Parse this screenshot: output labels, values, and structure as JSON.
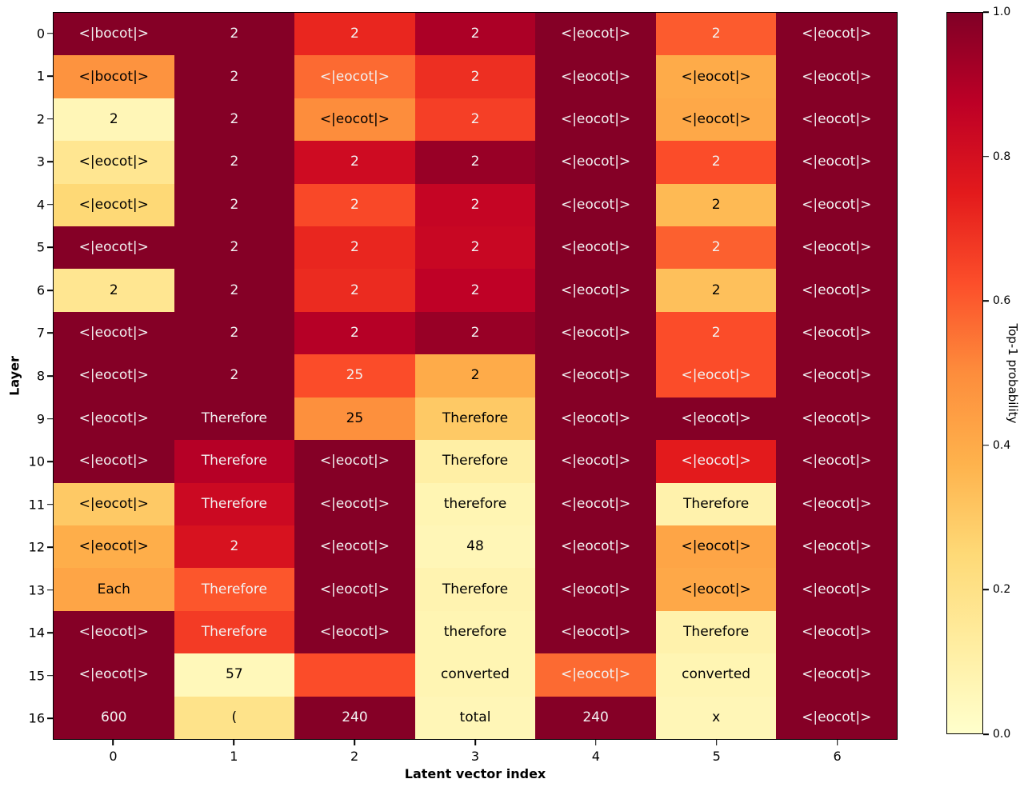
{
  "chart_data": {
    "type": "heatmap",
    "title": "",
    "xlabel": "Latent vector index",
    "ylabel": "Layer",
    "colorbar_label": "Top-1 probability",
    "colorbar_ticks": [
      "1.0",
      "0.8",
      "0.6",
      "0.4",
      "0.2",
      "0.0"
    ],
    "value_range": [
      0.0,
      1.0
    ],
    "x_ticks": [
      "0",
      "1",
      "2",
      "3",
      "4",
      "5",
      "6"
    ],
    "y_ticks": [
      "0",
      "1",
      "2",
      "3",
      "4",
      "5",
      "6",
      "7",
      "8",
      "9",
      "10",
      "11",
      "12",
      "13",
      "14",
      "15",
      "16"
    ],
    "colormap": "YlOrRd",
    "colormap_stops": [
      [
        0.0,
        "#ffffcc"
      ],
      [
        0.125,
        "#ffeda0"
      ],
      [
        0.25,
        "#fed976"
      ],
      [
        0.375,
        "#feb24c"
      ],
      [
        0.5,
        "#fd8d3c"
      ],
      [
        0.625,
        "#fc4e2a"
      ],
      [
        0.75,
        "#e31a1c"
      ],
      [
        0.875,
        "#bd0026"
      ],
      [
        1.0,
        "#800026"
      ]
    ],
    "rows": [
      {
        "layer": "0",
        "cells": [
          {
            "token": "<|bocot|>",
            "prob": 0.99
          },
          {
            "token": "2",
            "prob": 0.99
          },
          {
            "token": "2",
            "prob": 0.72
          },
          {
            "token": "2",
            "prob": 0.91
          },
          {
            "token": "<|eocot|>",
            "prob": 0.99
          },
          {
            "token": "2",
            "prob": 0.6
          },
          {
            "token": "<|eocot|>",
            "prob": 0.99
          }
        ]
      },
      {
        "layer": "1",
        "cells": [
          {
            "token": "<|bocot|>",
            "prob": 0.48
          },
          {
            "token": "2",
            "prob": 0.99
          },
          {
            "token": "<|eocot|>",
            "prob": 0.57
          },
          {
            "token": "2",
            "prob": 0.7
          },
          {
            "token": "<|eocot|>",
            "prob": 0.99
          },
          {
            "token": "<|eocot|>",
            "prob": 0.4
          },
          {
            "token": "<|eocot|>",
            "prob": 0.99
          }
        ]
      },
      {
        "layer": "2",
        "cells": [
          {
            "token": "2",
            "prob": 0.06
          },
          {
            "token": "2",
            "prob": 0.99
          },
          {
            "token": "<|eocot|>",
            "prob": 0.5
          },
          {
            "token": "2",
            "prob": 0.66
          },
          {
            "token": "<|eocot|>",
            "prob": 0.99
          },
          {
            "token": "<|eocot|>",
            "prob": 0.41
          },
          {
            "token": "<|eocot|>",
            "prob": 0.99
          }
        ]
      },
      {
        "layer": "3",
        "cells": [
          {
            "token": "<|eocot|>",
            "prob": 0.17
          },
          {
            "token": "2",
            "prob": 0.99
          },
          {
            "token": "2",
            "prob": 0.82
          },
          {
            "token": "2",
            "prob": 0.95
          },
          {
            "token": "<|eocot|>",
            "prob": 0.99
          },
          {
            "token": "2",
            "prob": 0.63
          },
          {
            "token": "<|eocot|>",
            "prob": 0.99
          }
        ]
      },
      {
        "layer": "4",
        "cells": [
          {
            "token": "<|eocot|>",
            "prob": 0.25
          },
          {
            "token": "2",
            "prob": 0.99
          },
          {
            "token": "2",
            "prob": 0.64
          },
          {
            "token": "2",
            "prob": 0.85
          },
          {
            "token": "<|eocot|>",
            "prob": 0.99
          },
          {
            "token": "2",
            "prob": 0.35
          },
          {
            "token": "<|eocot|>",
            "prob": 0.99
          }
        ]
      },
      {
        "layer": "5",
        "cells": [
          {
            "token": "<|eocot|>",
            "prob": 0.99
          },
          {
            "token": "2",
            "prob": 0.99
          },
          {
            "token": "2",
            "prob": 0.72
          },
          {
            "token": "2",
            "prob": 0.84
          },
          {
            "token": "<|eocot|>",
            "prob": 0.99
          },
          {
            "token": "2",
            "prob": 0.59
          },
          {
            "token": "<|eocot|>",
            "prob": 0.99
          }
        ]
      },
      {
        "layer": "6",
        "cells": [
          {
            "token": "2",
            "prob": 0.17
          },
          {
            "token": "2",
            "prob": 0.99
          },
          {
            "token": "2",
            "prob": 0.71
          },
          {
            "token": "2",
            "prob": 0.87
          },
          {
            "token": "<|eocot|>",
            "prob": 0.99
          },
          {
            "token": "2",
            "prob": 0.33
          },
          {
            "token": "<|eocot|>",
            "prob": 0.99
          }
        ]
      },
      {
        "layer": "7",
        "cells": [
          {
            "token": "<|eocot|>",
            "prob": 0.99
          },
          {
            "token": "2",
            "prob": 0.99
          },
          {
            "token": "2",
            "prob": 0.89
          },
          {
            "token": "2",
            "prob": 0.95
          },
          {
            "token": "<|eocot|>",
            "prob": 0.99
          },
          {
            "token": "2",
            "prob": 0.63
          },
          {
            "token": "<|eocot|>",
            "prob": 0.99
          }
        ]
      },
      {
        "layer": "8",
        "cells": [
          {
            "token": "<|eocot|>",
            "prob": 0.99
          },
          {
            "token": "2",
            "prob": 0.99
          },
          {
            "token": "25",
            "prob": 0.63
          },
          {
            "token": "2",
            "prob": 0.4
          },
          {
            "token": "<|eocot|>",
            "prob": 0.99
          },
          {
            "token": "<|eocot|>",
            "prob": 0.63
          },
          {
            "token": "<|eocot|>",
            "prob": 0.99
          }
        ]
      },
      {
        "layer": "9",
        "cells": [
          {
            "token": "<|eocot|>",
            "prob": 0.99
          },
          {
            "token": "Therefore",
            "prob": 0.99
          },
          {
            "token": "25",
            "prob": 0.49
          },
          {
            "token": "Therefore",
            "prob": 0.3
          },
          {
            "token": "<|eocot|>",
            "prob": 0.99
          },
          {
            "token": "<|eocot|>",
            "prob": 0.99
          },
          {
            "token": "<|eocot|>",
            "prob": 0.99
          }
        ]
      },
      {
        "layer": "10",
        "cells": [
          {
            "token": "<|eocot|>",
            "prob": 0.99
          },
          {
            "token": "Therefore",
            "prob": 0.89
          },
          {
            "token": "<|eocot|>",
            "prob": 0.99
          },
          {
            "token": "Therefore",
            "prob": 0.11
          },
          {
            "token": "<|eocot|>",
            "prob": 0.99
          },
          {
            "token": "<|eocot|>",
            "prob": 0.75
          },
          {
            "token": "<|eocot|>",
            "prob": 0.99
          }
        ]
      },
      {
        "layer": "11",
        "cells": [
          {
            "token": "<|eocot|>",
            "prob": 0.3
          },
          {
            "token": "Therefore",
            "prob": 0.83
          },
          {
            "token": "<|eocot|>",
            "prob": 0.99
          },
          {
            "token": "therefore",
            "prob": 0.07
          },
          {
            "token": "<|eocot|>",
            "prob": 0.99
          },
          {
            "token": "Therefore",
            "prob": 0.09
          },
          {
            "token": "<|eocot|>",
            "prob": 0.99
          }
        ]
      },
      {
        "layer": "12",
        "cells": [
          {
            "token": "<|eocot|>",
            "prob": 0.39
          },
          {
            "token": "2",
            "prob": 0.79
          },
          {
            "token": "<|eocot|>",
            "prob": 0.99
          },
          {
            "token": "48",
            "prob": 0.06
          },
          {
            "token": "<|eocot|>",
            "prob": 0.99
          },
          {
            "token": "<|eocot|>",
            "prob": 0.42
          },
          {
            "token": "<|eocot|>",
            "prob": 0.99
          }
        ]
      },
      {
        "layer": "13",
        "cells": [
          {
            "token": "Each",
            "prob": 0.42
          },
          {
            "token": "Therefore",
            "prob": 0.61
          },
          {
            "token": "<|eocot|>",
            "prob": 0.99
          },
          {
            "token": "Therefore",
            "prob": 0.08
          },
          {
            "token": "<|eocot|>",
            "prob": 0.99
          },
          {
            "token": "<|eocot|>",
            "prob": 0.41
          },
          {
            "token": "<|eocot|>",
            "prob": 0.99
          }
        ]
      },
      {
        "layer": "14",
        "cells": [
          {
            "token": "<|eocot|>",
            "prob": 0.99
          },
          {
            "token": "Therefore",
            "prob": 0.67
          },
          {
            "token": "<|eocot|>",
            "prob": 0.99
          },
          {
            "token": "therefore",
            "prob": 0.07
          },
          {
            "token": "<|eocot|>",
            "prob": 0.99
          },
          {
            "token": "Therefore",
            "prob": 0.09
          },
          {
            "token": "<|eocot|>",
            "prob": 0.99
          }
        ]
      },
      {
        "layer": "15",
        "cells": [
          {
            "token": "<|eocot|>",
            "prob": 0.99
          },
          {
            "token": "57",
            "prob": 0.05
          },
          {
            "token": "",
            "prob": 0.63
          },
          {
            "token": "converted",
            "prob": 0.07
          },
          {
            "token": "<|eocot|>",
            "prob": 0.57
          },
          {
            "token": "converted",
            "prob": 0.07
          },
          {
            "token": "<|eocot|>",
            "prob": 0.99
          }
        ]
      },
      {
        "layer": "16",
        "cells": [
          {
            "token": "600",
            "prob": 0.99
          },
          {
            "token": "(",
            "prob": 0.19
          },
          {
            "token": "240",
            "prob": 0.99
          },
          {
            "token": "total",
            "prob": 0.06
          },
          {
            "token": "240",
            "prob": 0.99
          },
          {
            "token": "x",
            "prob": 0.06
          },
          {
            "token": "<|eocot|>",
            "prob": 0.99
          }
        ]
      }
    ]
  }
}
